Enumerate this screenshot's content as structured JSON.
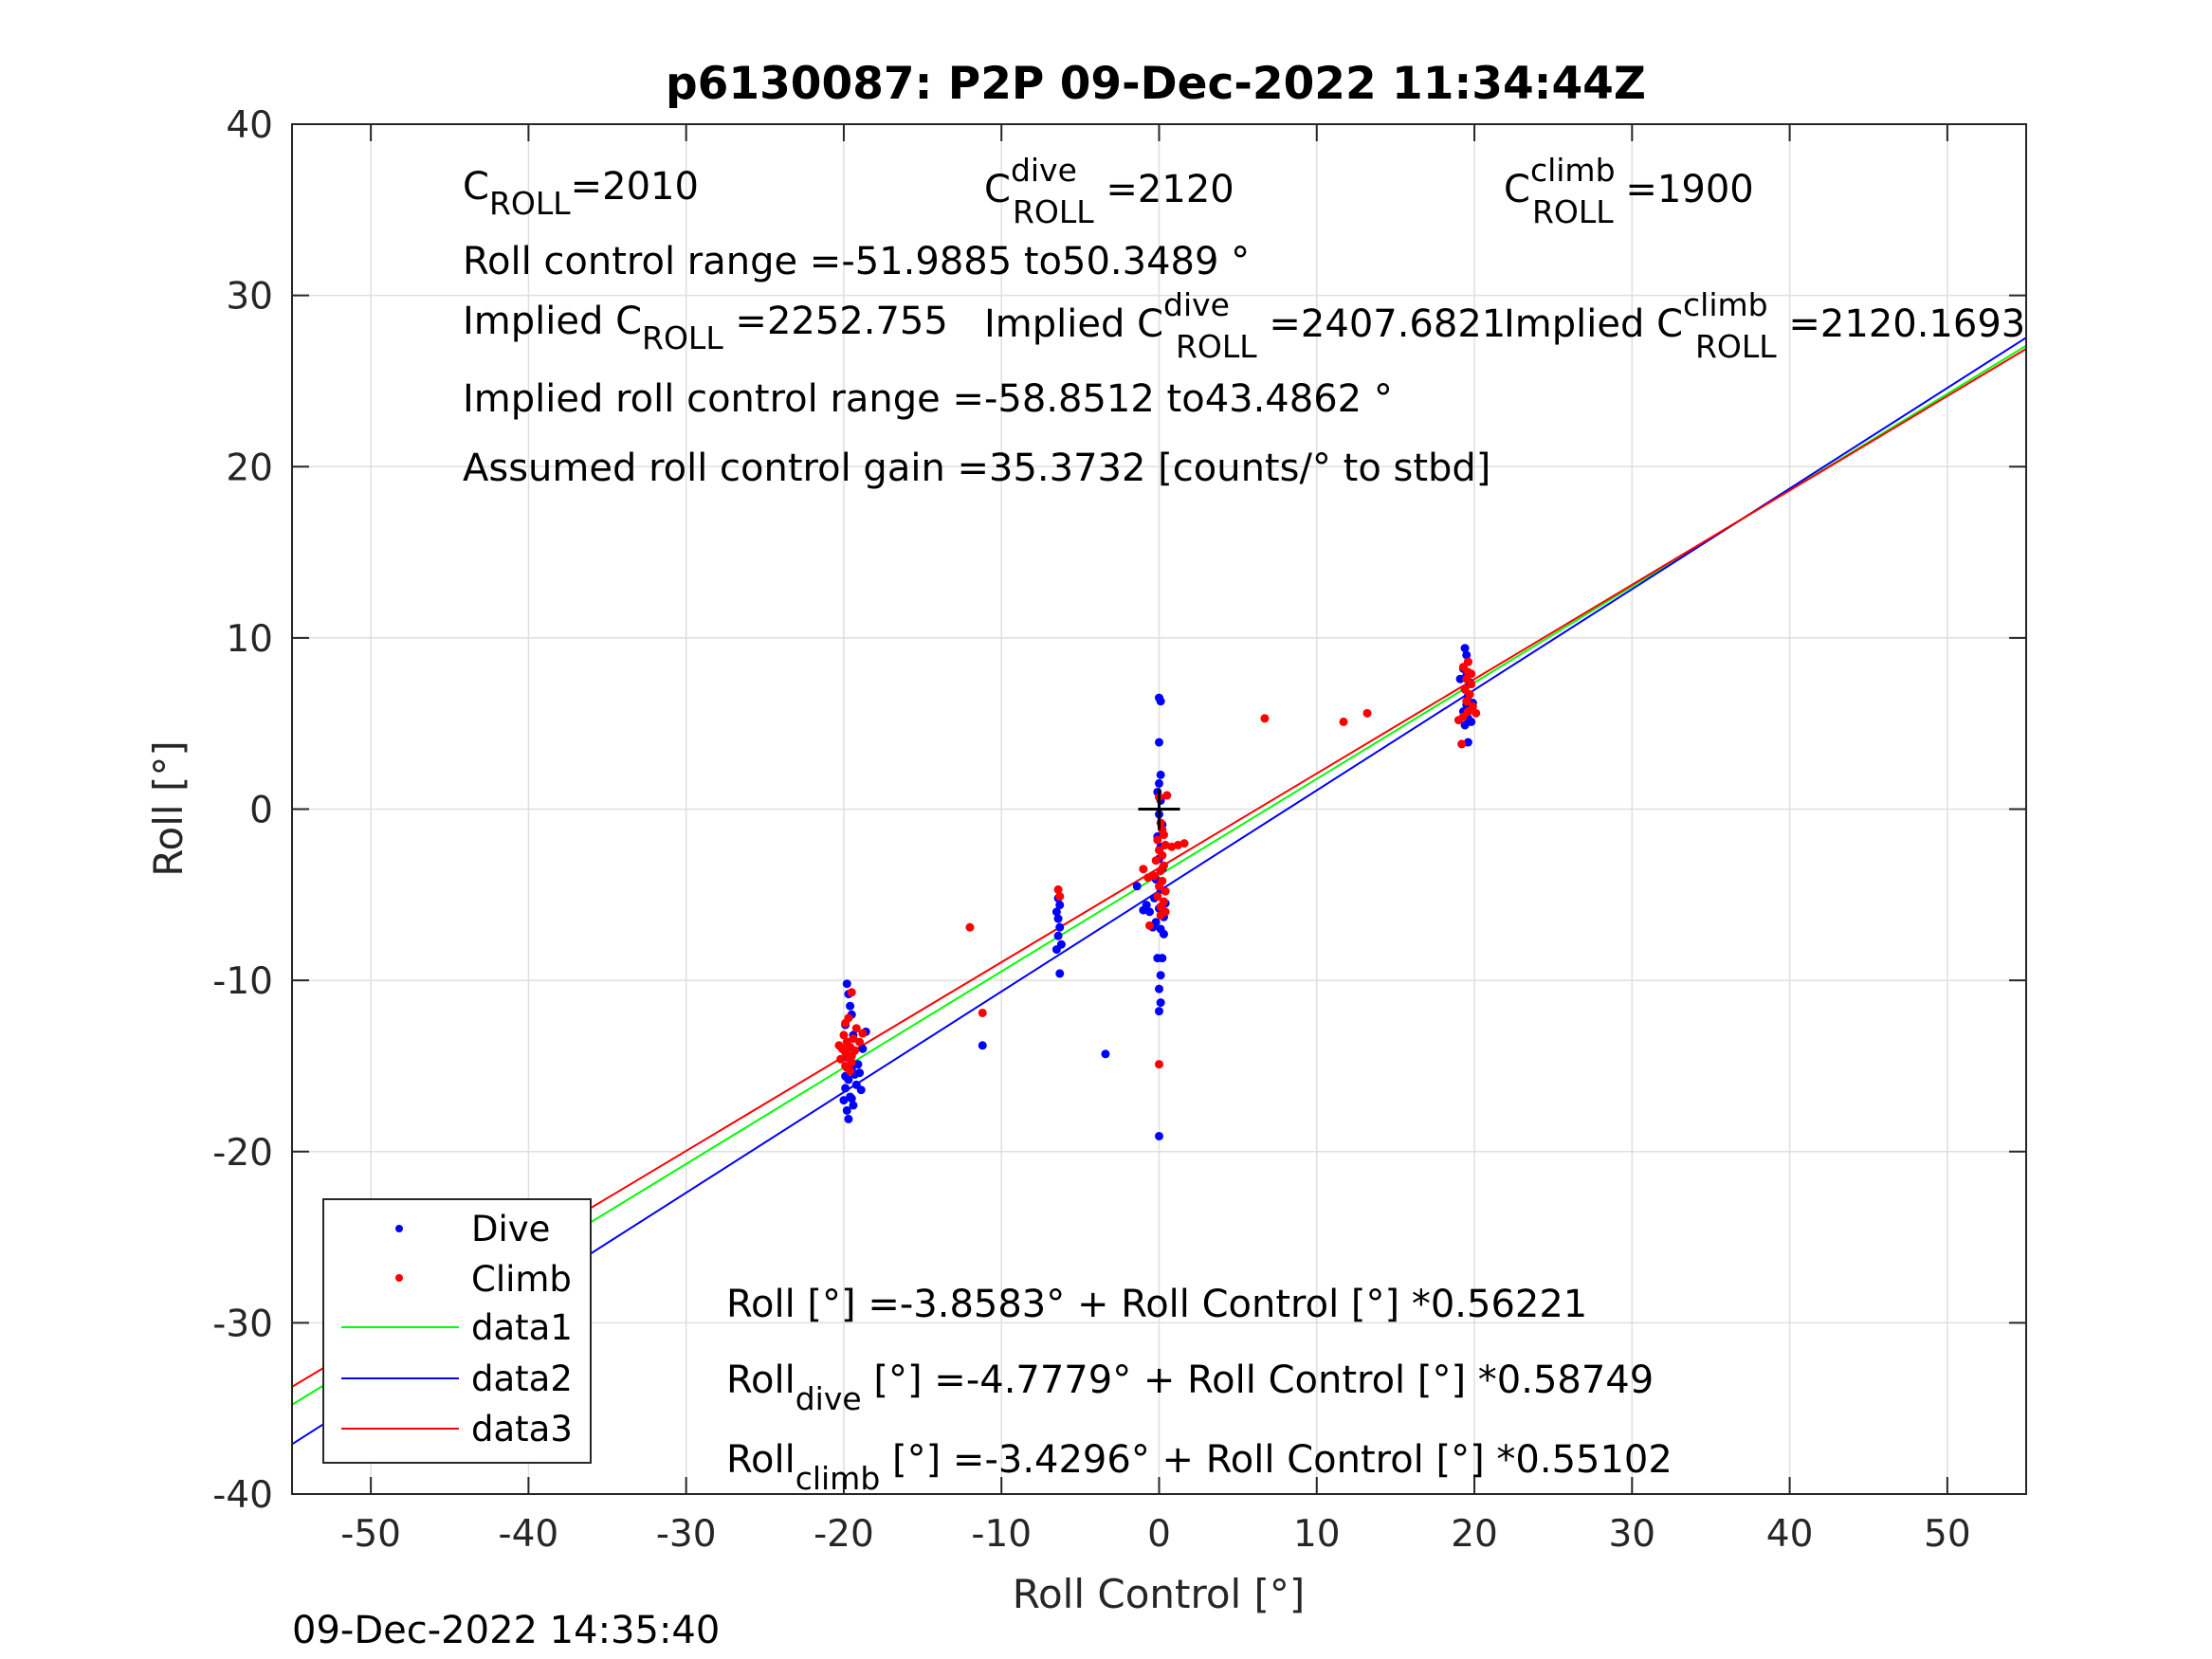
{
  "chart_data": {
    "type": "scatter",
    "title": "p6130087: P2P 09-Dec-2022 11:34:44Z",
    "xlabel": "Roll Control [°]",
    "ylabel": "Roll [°]",
    "xlim": [
      -55,
      55
    ],
    "ylim": [
      -40,
      40
    ],
    "xticks": [
      -50,
      -40,
      -30,
      -20,
      -10,
      0,
      10,
      20,
      30,
      40,
      50
    ],
    "yticks": [
      -40,
      -30,
      -20,
      -10,
      0,
      10,
      20,
      30,
      40
    ],
    "grid": true,
    "legend_position": "bottom-left",
    "legend": [
      "Dive",
      "Climb",
      "data1",
      "data2",
      "data3"
    ],
    "timestamp": "09-Dec-2022 14:35:40",
    "origin_marker": [
      0,
      0
    ],
    "annotations": {
      "c_roll_main": "C",
      "c_roll_sub": "ROLL",
      "c_roll_value": "=2010",
      "c_dive_main": "C",
      "c_dive_sup": "dive",
      "c_dive_sub": "ROLL",
      "c_dive_value": " =2120",
      "c_climb_main": "C",
      "c_climb_sup": "climb",
      "c_climb_sub": "ROLL",
      "c_climb_value": " =1900",
      "range_text": "Roll control range =-51.9885 to50.3489 °",
      "implied_prefix": "Implied C",
      "implied_sub": "ROLL",
      "implied_value": " =2252.755",
      "implied_dive_prefix": "Implied C",
      "implied_dive_sup": "dive",
      "implied_dive_sub": "ROLL",
      "implied_dive_value": " =2407.6821",
      "implied_climb_prefix": "Implied C",
      "implied_climb_sup": "climb",
      "implied_climb_sub": "ROLL",
      "implied_climb_value": " =2120.1693",
      "implied_range_text": "Implied roll control range =-58.8512 to43.4862 °",
      "gain_text": "Assumed roll control gain =35.3732 [counts/° to stbd]",
      "fit_all": "Roll [°] =-3.8583° + Roll Control [°] *0.56221",
      "fit_dive_main": "Roll",
      "fit_dive_sub": "dive",
      "fit_dive_rest": " [°] =-4.7779° + Roll Control [°] *0.58749",
      "fit_climb_main": "Roll",
      "fit_climb_sub": "climb",
      "fit_climb_rest": " [°] =-3.4296° + Roll Control [°] *0.55102"
    },
    "series": [
      {
        "name": "Dive",
        "kind": "points",
        "color": "#0000ff",
        "points": [
          [
            -19.8,
            -10.2
          ],
          [
            -19.7,
            -10.8
          ],
          [
            -19.6,
            -11.5
          ],
          [
            -19.5,
            -12.0
          ],
          [
            -19.9,
            -12.6
          ],
          [
            -19.4,
            -13.2
          ],
          [
            -19.6,
            -13.9
          ],
          [
            -19.8,
            -14.5
          ],
          [
            -19.5,
            -15.2
          ],
          [
            -19.7,
            -15.8
          ],
          [
            -19.9,
            -16.3
          ],
          [
            -19.6,
            -16.8
          ],
          [
            -19.4,
            -17.3
          ],
          [
            -19.8,
            -17.6
          ],
          [
            -19.7,
            -18.1
          ],
          [
            -19.3,
            -15.5
          ],
          [
            -19.2,
            -16.1
          ],
          [
            -19.5,
            -16.9
          ],
          [
            -19.1,
            -14.9
          ],
          [
            -19.0,
            -15.4
          ],
          [
            -18.9,
            -16.4
          ],
          [
            -18.6,
            -13.0
          ],
          [
            -18.8,
            -14.0
          ],
          [
            -20.0,
            -17.0
          ],
          [
            -19.9,
            -15.6
          ],
          [
            -6.4,
            -5.2
          ],
          [
            -6.3,
            -5.6
          ],
          [
            -6.5,
            -6.0
          ],
          [
            -6.4,
            -6.4
          ],
          [
            -6.3,
            -6.9
          ],
          [
            -6.4,
            -7.4
          ],
          [
            -6.2,
            -7.9
          ],
          [
            -6.5,
            -8.2
          ],
          [
            -6.3,
            -9.6
          ],
          [
            -11.2,
            -13.8
          ],
          [
            -3.4,
            -14.3
          ],
          [
            -1.4,
            -4.5
          ],
          [
            0.0,
            6.5
          ],
          [
            0.1,
            6.3
          ],
          [
            0.0,
            3.9
          ],
          [
            0.1,
            2.0
          ],
          [
            0.0,
            1.5
          ],
          [
            -0.1,
            1.0
          ],
          [
            0.1,
            0.5
          ],
          [
            0.0,
            -0.3
          ],
          [
            0.2,
            -0.9
          ],
          [
            -0.1,
            -1.6
          ],
          [
            0.1,
            -2.2
          ],
          [
            0.0,
            -2.9
          ],
          [
            0.2,
            -3.5
          ],
          [
            -0.2,
            -4.1
          ],
          [
            0.1,
            -4.7
          ],
          [
            -0.3,
            -5.2
          ],
          [
            0.0,
            -5.8
          ],
          [
            0.3,
            -6.3
          ],
          [
            -0.2,
            -6.6
          ],
          [
            0.1,
            -7.0
          ],
          [
            0.3,
            -7.3
          ],
          [
            -0.1,
            -8.7
          ],
          [
            0.2,
            -8.7
          ],
          [
            0.1,
            -9.7
          ],
          [
            0.0,
            -10.5
          ],
          [
            0.1,
            -11.3
          ],
          [
            0.0,
            -11.8
          ],
          [
            0.0,
            -19.1
          ],
          [
            -0.6,
            -6.0
          ],
          [
            -0.8,
            -5.6
          ],
          [
            -1.0,
            -5.9
          ],
          [
            0.4,
            -5.5
          ],
          [
            -0.4,
            -6.9
          ],
          [
            19.4,
            9.4
          ],
          [
            19.5,
            9.0
          ],
          [
            19.6,
            8.6
          ],
          [
            19.3,
            8.2
          ],
          [
            19.5,
            7.8
          ],
          [
            19.7,
            7.4
          ],
          [
            19.4,
            7.0
          ],
          [
            19.6,
            6.6
          ],
          [
            19.5,
            6.1
          ],
          [
            19.3,
            5.7
          ],
          [
            19.6,
            5.3
          ],
          [
            19.4,
            4.9
          ],
          [
            19.6,
            3.9
          ],
          [
            19.2,
            3.8
          ],
          [
            19.8,
            5.1
          ],
          [
            19.9,
            6.2
          ],
          [
            19.1,
            7.6
          ]
        ]
      },
      {
        "name": "Climb",
        "kind": "points",
        "color": "#ff0000",
        "points": [
          [
            -19.5,
            -10.7
          ],
          [
            -19.9,
            -12.5
          ],
          [
            -20.0,
            -13.2
          ],
          [
            -19.8,
            -13.6
          ],
          [
            -19.6,
            -13.9
          ],
          [
            -19.9,
            -14.2
          ],
          [
            -19.7,
            -14.5
          ],
          [
            -19.5,
            -14.8
          ],
          [
            -19.8,
            -15.1
          ],
          [
            -19.6,
            -15.3
          ],
          [
            -20.1,
            -14.0
          ],
          [
            -20.2,
            -14.6
          ],
          [
            -19.4,
            -13.4
          ],
          [
            -19.3,
            -14.1
          ],
          [
            -19.2,
            -12.8
          ],
          [
            -19.0,
            -13.6
          ],
          [
            -18.8,
            -13.1
          ],
          [
            -19.7,
            -12.2
          ],
          [
            -20.3,
            -13.8
          ],
          [
            -19.9,
            -15.0
          ],
          [
            -19.5,
            -14.4
          ],
          [
            -12.0,
            -6.9
          ],
          [
            -11.2,
            -11.9
          ],
          [
            -6.4,
            -4.7
          ],
          [
            -6.3,
            -5.1
          ],
          [
            0.0,
            0.7
          ],
          [
            0.5,
            0.8
          ],
          [
            0.1,
            -0.8
          ],
          [
            0.2,
            -1.2
          ],
          [
            0.3,
            -1.5
          ],
          [
            -0.1,
            -1.8
          ],
          [
            0.4,
            -2.1
          ],
          [
            0.0,
            -2.4
          ],
          [
            0.2,
            -2.7
          ],
          [
            -0.2,
            -3.0
          ],
          [
            0.3,
            -3.3
          ],
          [
            0.1,
            -3.6
          ],
          [
            -0.3,
            -3.9
          ],
          [
            0.2,
            -4.2
          ],
          [
            0.0,
            -4.5
          ],
          [
            0.4,
            -4.8
          ],
          [
            -0.1,
            -5.1
          ],
          [
            0.3,
            -5.4
          ],
          [
            0.1,
            -5.7
          ],
          [
            0.4,
            -6.0
          ],
          [
            0.1,
            -6.2
          ],
          [
            -0.6,
            -6.8
          ],
          [
            -1.0,
            -3.5
          ],
          [
            -0.7,
            -4.0
          ],
          [
            0.8,
            -2.2
          ],
          [
            1.2,
            -2.1
          ],
          [
            1.6,
            -2.0
          ],
          [
            0.0,
            -14.9
          ],
          [
            6.7,
            5.3
          ],
          [
            11.7,
            5.1
          ],
          [
            13.2,
            5.6
          ],
          [
            19.3,
            8.3
          ],
          [
            19.6,
            8.0
          ],
          [
            19.5,
            7.6
          ],
          [
            19.8,
            7.3
          ],
          [
            19.4,
            7.0
          ],
          [
            19.7,
            6.7
          ],
          [
            19.5,
            6.3
          ],
          [
            19.9,
            6.0
          ],
          [
            19.6,
            5.7
          ],
          [
            19.3,
            5.4
          ],
          [
            20.1,
            5.6
          ],
          [
            19.0,
            5.2
          ],
          [
            19.2,
            3.8
          ],
          [
            19.6,
            8.6
          ],
          [
            19.8,
            7.9
          ]
        ]
      },
      {
        "name": "data1",
        "kind": "line",
        "color": "#00ff00",
        "intercept": -3.8583,
        "slope": 0.56221
      },
      {
        "name": "data2",
        "kind": "line",
        "color": "#0000ff",
        "intercept": -4.7779,
        "slope": 0.58749
      },
      {
        "name": "data3",
        "kind": "line",
        "color": "#ff0000",
        "intercept": -3.4296,
        "slope": 0.55102
      }
    ]
  }
}
